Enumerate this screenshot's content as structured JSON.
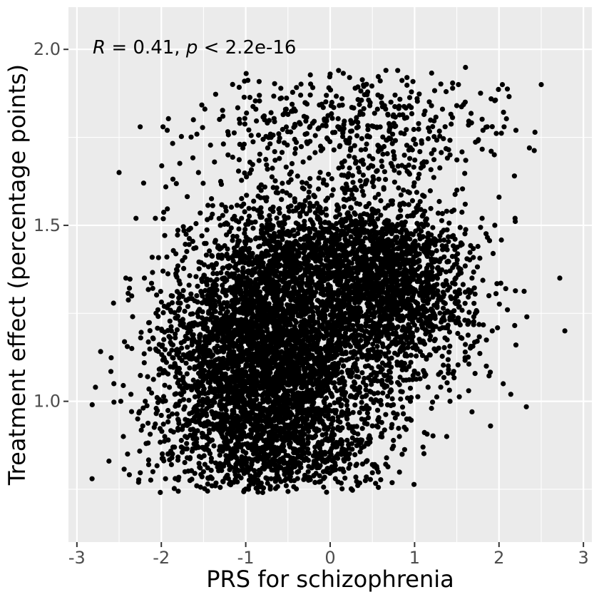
{
  "chart_data": {
    "type": "scatter",
    "title": "",
    "xlabel": "PRS for schizophrenia",
    "ylabel": "Treatment effect (percentage points)",
    "xlim": [
      -3.1,
      3.1
    ],
    "ylim": [
      0.6,
      2.12
    ],
    "x_ticks": [
      -3,
      -2,
      -1,
      0,
      1,
      2,
      3
    ],
    "x_tick_labels": [
      "-3",
      "-2",
      "-1",
      "0",
      "1",
      "2",
      "3"
    ],
    "y_ticks": [
      1.0,
      1.5,
      2.0
    ],
    "y_tick_labels": [
      "1.0",
      "1.5",
      "2.0"
    ],
    "grid": true,
    "legend": "none",
    "annotation": {
      "R_symbol": "R",
      "R_text": " = 0.41, ",
      "p_symbol": "p",
      "p_text": " < 2.2e-16"
    },
    "colors": {
      "panel_background": "#ebebeb",
      "grid_major": "#ffffff",
      "point": "#000000"
    },
    "series": [
      {
        "x": [
          -2.82,
          -2.78,
          -2.62,
          -2.5,
          -2.48,
          -2.42,
          -2.36,
          -2.3,
          -2.27,
          -2.25,
          -2.21,
          -2.19,
          -2.07,
          -1.98,
          -1.93,
          -1.62,
          -1.56,
          -1.27,
          -1.21,
          -1.07,
          -0.88,
          -0.7,
          -0.52,
          -0.35,
          0.0,
          0.1,
          0.23,
          0.47,
          0.56,
          0.72,
          0.8,
          0.91,
          1.03,
          1.2,
          1.33,
          1.52,
          1.6,
          1.81,
          1.86,
          2.04,
          2.06,
          2.2,
          2.36,
          2.5,
          2.72,
          2.78,
          -1.98,
          -1.85,
          -1.55,
          -1.22,
          -0.95,
          -0.6,
          -0.25,
          -0.03,
          0.2,
          0.55,
          0.82,
          1.1,
          1.38,
          1.68,
          1.9,
          2.14,
          2.33,
          -1.37,
          -1.07,
          -0.7,
          -0.32,
          -0.08,
          0.25,
          0.57,
          0.85,
          1.14,
          1.42,
          1.75,
          2.0,
          2.19,
          -2.2,
          -1.98,
          -1.75,
          -1.52,
          -1.3,
          -1.05,
          -0.82,
          -0.6,
          -0.38,
          -0.15,
          0.1,
          0.35,
          0.6,
          0.88,
          1.12,
          1.38,
          1.6,
          1.8,
          1.95,
          -2.04,
          -1.8,
          -1.58,
          -1.37,
          -1.13,
          -0.92,
          -0.7,
          -0.48,
          -0.24,
          0.02,
          0.3,
          0.55,
          0.8,
          1.05,
          1.3,
          1.55,
          1.75,
          1.93,
          2.08,
          -2.35,
          -2.1,
          -1.88,
          -1.66,
          -1.44,
          -1.22,
          -1.0,
          -0.78,
          -0.56,
          -0.34,
          -0.12,
          0.12,
          0.4,
          0.68,
          0.95,
          1.2,
          1.45,
          1.68,
          1.88,
          2.1,
          -2.28,
          -2.06,
          -1.84,
          -1.62,
          -1.4,
          -1.18,
          -0.96,
          -0.74,
          -0.52,
          -0.3,
          -0.08,
          0.18,
          0.45,
          0.72,
          0.98,
          1.22,
          1.48,
          1.72,
          1.92,
          2.2,
          -2.45,
          -2.22,
          -2.0,
          -1.78,
          -1.56,
          -1.34,
          -1.12,
          -0.9,
          -0.68,
          -0.46,
          -0.24,
          0.02,
          0.3,
          0.58,
          0.84,
          1.1,
          1.36,
          1.6,
          1.85,
          2.05,
          -2.4,
          -2.18,
          -1.96,
          -1.74,
          -1.52,
          -1.3,
          -1.08,
          -0.86,
          -0.64,
          -0.42,
          -0.2,
          0.05,
          0.32,
          0.6,
          0.88,
          1.14,
          1.4,
          1.64,
          -2.15,
          -1.92,
          -1.7,
          -1.48,
          -1.26,
          -1.04,
          -0.82,
          -0.6,
          -0.38,
          -0.16,
          0.08,
          0.35,
          0.62,
          0.9,
          1.16,
          1.42,
          -2.1,
          -1.88,
          -1.66,
          -1.44,
          -1.22,
          -1.0,
          -0.78,
          -0.56,
          -0.34,
          -0.12,
          0.14,
          0.4,
          0.68,
          0.95,
          1.2,
          -1.95,
          -1.72,
          -1.5,
          -1.28,
          -1.06,
          -0.84,
          -0.62,
          -0.4,
          -0.18,
          0.06,
          0.32,
          0.6,
          0.9,
          -1.58,
          -1.36,
          -1.14,
          -0.92,
          -0.7,
          -0.48,
          -0.26,
          -0.04,
          0.22,
          0.5,
          -1.4,
          -1.18,
          -0.96,
          -0.74,
          -0.52,
          -0.3,
          -0.08,
          0.16
        ],
        "y": [
          0.78,
          1.04,
          0.83,
          1.65,
          1.0,
          1.35,
          1.02,
          1.52,
          0.77,
          1.78,
          1.62,
          1.0,
          1.52,
          1.78,
          1.77,
          1.8,
          1.65,
          1.81,
          1.7,
          1.79,
          1.83,
          1.82,
          1.83,
          1.87,
          1.93,
          1.94,
          1.92,
          1.84,
          1.83,
          1.85,
          1.94,
          1.92,
          1.86,
          1.84,
          1.83,
          1.9,
          1.85,
          1.77,
          1.78,
          1.9,
          1.78,
          1.77,
          1.72,
          1.9,
          1.35,
          1.2,
          1.0,
          1.1,
          1.0,
          1.05,
          1.0,
          0.95,
          0.9,
          0.92,
          0.95,
          0.93,
          0.9,
          0.87,
          0.9,
          0.97,
          0.93,
          1.02,
          1.24,
          1.68,
          1.73,
          1.75,
          1.68,
          1.62,
          1.6,
          1.71,
          1.67,
          1.68,
          1.7,
          1.74,
          1.58,
          1.52,
          1.35,
          1.37,
          1.4,
          1.47,
          1.5,
          1.52,
          1.55,
          1.5,
          1.55,
          1.52,
          1.55,
          1.56,
          1.57,
          1.56,
          1.54,
          1.54,
          1.56,
          1.52,
          1.5,
          1.26,
          1.28,
          1.3,
          1.34,
          1.38,
          1.42,
          1.44,
          1.45,
          1.48,
          1.5,
          1.5,
          1.48,
          1.5,
          1.49,
          1.47,
          1.45,
          1.44,
          1.42,
          1.32,
          1.15,
          1.18,
          1.2,
          1.22,
          1.25,
          1.28,
          1.3,
          1.32,
          1.34,
          1.35,
          1.36,
          1.38,
          1.4,
          1.41,
          1.42,
          1.4,
          1.38,
          1.35,
          1.3,
          1.26,
          0.95,
          0.98,
          1.02,
          1.06,
          1.1,
          1.13,
          1.16,
          1.18,
          1.2,
          1.22,
          1.23,
          1.25,
          1.27,
          1.3,
          1.32,
          1.3,
          1.28,
          1.25,
          1.2,
          1.16,
          0.9,
          0.93,
          0.96,
          1.0,
          1.04,
          1.08,
          1.1,
          1.12,
          1.14,
          1.15,
          1.16,
          1.18,
          1.2,
          1.22,
          1.24,
          1.22,
          1.18,
          1.14,
          1.1,
          1.05,
          0.85,
          0.88,
          0.9,
          0.93,
          0.96,
          1.0,
          1.03,
          1.05,
          1.06,
          1.07,
          1.08,
          1.1,
          1.12,
          1.14,
          1.15,
          1.12,
          1.08,
          1.03,
          0.82,
          0.85,
          0.88,
          0.9,
          0.93,
          0.96,
          0.98,
          1.0,
          1.01,
          1.02,
          1.03,
          1.04,
          1.05,
          1.06,
          1.04,
          1.0,
          0.8,
          0.82,
          0.84,
          0.86,
          0.88,
          0.9,
          0.92,
          0.94,
          0.95,
          0.96,
          0.97,
          0.98,
          0.99,
          1.0,
          0.98,
          0.78,
          0.8,
          0.8,
          0.82,
          0.83,
          0.84,
          0.85,
          0.86,
          0.87,
          0.88,
          0.89,
          0.9,
          0.92,
          0.76,
          0.76,
          0.77,
          0.77,
          0.78,
          0.79,
          0.8,
          0.8,
          0.81,
          0.82,
          0.76,
          0.77,
          0.76,
          0.78,
          0.78,
          0.79,
          0.8,
          0.8
        ]
      }
    ],
    "density_clusters": [
      {
        "cx": -0.75,
        "cy": 1.14,
        "sx": 0.5,
        "sy": 0.17,
        "n": 3300
      },
      {
        "cx": 0.55,
        "cy": 1.37,
        "sx": 0.45,
        "sy": 0.1,
        "n": 900
      },
      {
        "cx": 1.0,
        "cy": 1.3,
        "sx": 0.42,
        "sy": 0.12,
        "n": 650
      },
      {
        "cx": 0.35,
        "cy": 1.12,
        "sx": 0.38,
        "sy": 0.13,
        "n": 450
      },
      {
        "cx": -0.2,
        "cy": 1.42,
        "sx": 0.55,
        "sy": 0.08,
        "n": 550
      },
      {
        "cx": -1.55,
        "cy": 1.08,
        "sx": 0.4,
        "sy": 0.2,
        "n": 450
      },
      {
        "cx": 0.2,
        "cy": 1.76,
        "sx": 0.9,
        "sy": 0.09,
        "n": 500
      },
      {
        "cx": -0.5,
        "cy": 0.86,
        "sx": 0.55,
        "sy": 0.06,
        "n": 500
      }
    ]
  }
}
